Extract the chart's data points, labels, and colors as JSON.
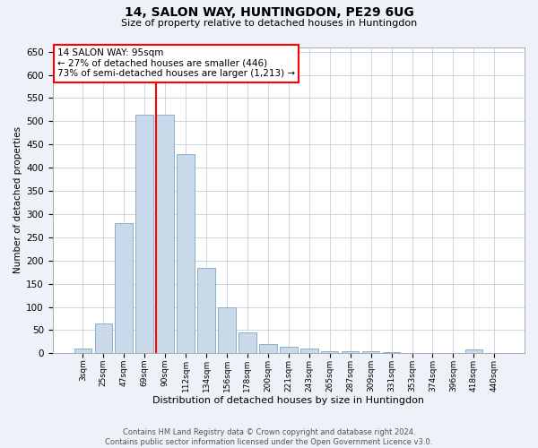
{
  "title1": "14, SALON WAY, HUNTINGDON, PE29 6UG",
  "title2": "Size of property relative to detached houses in Huntingdon",
  "xlabel": "Distribution of detached houses by size in Huntingdon",
  "ylabel": "Number of detached properties",
  "annotation_line1": "14 SALON WAY: 95sqm",
  "annotation_line2": "← 27% of detached houses are smaller (446)",
  "annotation_line3": "73% of semi-detached houses are larger (1,213) →",
  "footer1": "Contains HM Land Registry data © Crown copyright and database right 2024.",
  "footer2": "Contains public sector information licensed under the Open Government Licence v3.0.",
  "categories": [
    "3sqm",
    "25sqm",
    "47sqm",
    "69sqm",
    "90sqm",
    "112sqm",
    "134sqm",
    "156sqm",
    "178sqm",
    "200sqm",
    "221sqm",
    "243sqm",
    "265sqm",
    "287sqm",
    "309sqm",
    "331sqm",
    "353sqm",
    "374sqm",
    "396sqm",
    "418sqm",
    "440sqm"
  ],
  "values": [
    10,
    65,
    280,
    515,
    515,
    430,
    185,
    100,
    45,
    20,
    15,
    10,
    5,
    5,
    5,
    2,
    0,
    0,
    0,
    8,
    0
  ],
  "bar_color": "#c9d9ea",
  "bar_edge_color": "#8ab0cc",
  "red_line_index": 4,
  "ylim": [
    0,
    660
  ],
  "yticks": [
    0,
    50,
    100,
    150,
    200,
    250,
    300,
    350,
    400,
    450,
    500,
    550,
    600,
    650
  ],
  "bg_color": "#edf2f8",
  "plot_bg_color": "#ffffff",
  "grid_color": "#c8d0dc"
}
